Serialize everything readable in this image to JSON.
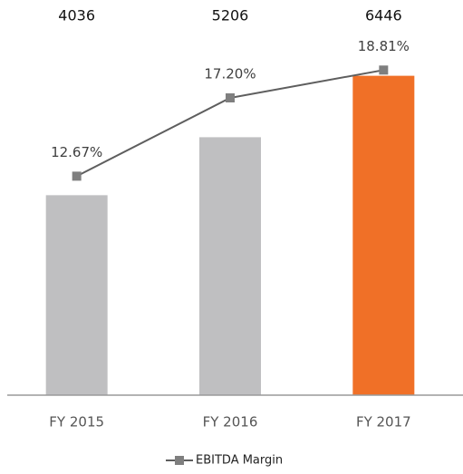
{
  "chart_data": {
    "type": "bar",
    "categories": [
      "FY 2015",
      "FY 2016",
      "FY 2017"
    ],
    "series": [
      {
        "type": "bar",
        "colors": [
          "#bfbfc1",
          "#bfbfc1",
          "#f07027"
        ],
        "values": [
          4036,
          5206,
          6446
        ]
      },
      {
        "type": "line",
        "name": "EBITDA Margin",
        "axis": "y2",
        "color": "#5e5e5e",
        "marker_color": "#7f7f7f",
        "values": [
          12.67,
          17.2,
          18.81
        ],
        "value_labels": [
          "12.67%",
          "17.20%",
          "18.81%"
        ]
      }
    ],
    "ylim": [
      0,
      7500
    ],
    "y2lim": [
      0,
      21.5
    ],
    "legend": "bottom"
  }
}
